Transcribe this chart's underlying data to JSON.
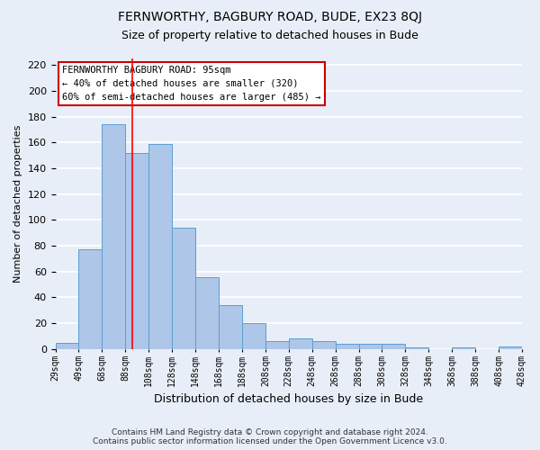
{
  "title": "FERNWORTHY, BAGBURY ROAD, BUDE, EX23 8QJ",
  "subtitle": "Size of property relative to detached houses in Bude",
  "xlabel": "Distribution of detached houses by size in Bude",
  "ylabel": "Number of detached properties",
  "bar_values": [
    5,
    77,
    174,
    152,
    159,
    94,
    56,
    34,
    20,
    6,
    8,
    6,
    4,
    4,
    4,
    1,
    0,
    1,
    0,
    2
  ],
  "categories": [
    "29sqm",
    "49sqm",
    "68sqm",
    "88sqm",
    "108sqm",
    "128sqm",
    "148sqm",
    "168sqm",
    "188sqm",
    "208sqm",
    "228sqm",
    "248sqm",
    "268sqm",
    "288sqm",
    "308sqm",
    "328sqm",
    "348sqm",
    "368sqm",
    "388sqm",
    "408sqm",
    "428sqm"
  ],
  "bar_color": "#aec6e8",
  "bar_edge_color": "#5a9fd4",
  "background_color": "#e8eef7",
  "grid_color": "#ffffff",
  "annotation_line_bin": 3.3,
  "annotation_text_line1": "FERNWORTHY BAGBURY ROAD: 95sqm",
  "annotation_text_line2": "← 40% of detached houses are smaller (320)",
  "annotation_text_line3": "60% of semi-detached houses are larger (485) →",
  "annotation_box_color": "#ffffff",
  "annotation_box_edge": "#cc0000",
  "footer_line1": "Contains HM Land Registry data © Crown copyright and database right 2024.",
  "footer_line2": "Contains public sector information licensed under the Open Government Licence v3.0.",
  "ylim": [
    0,
    225
  ],
  "yticks": [
    0,
    20,
    40,
    60,
    80,
    100,
    120,
    140,
    160,
    180,
    200,
    220
  ],
  "figsize": [
    6.0,
    5.0
  ],
  "dpi": 100
}
